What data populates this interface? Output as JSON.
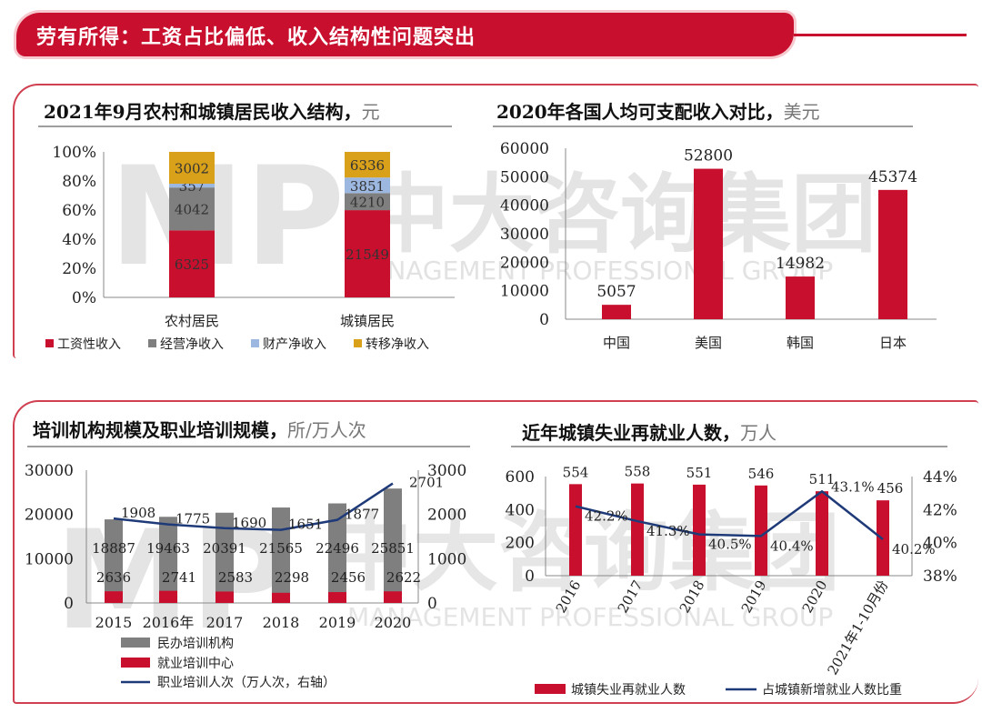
{
  "banner": {
    "title": "劳有所得：工资占比偏低、收入结构性问题突出",
    "color": "#c8102e"
  },
  "watermark": {
    "logo": "MP",
    "cn": "中大咨询集团",
    "en": "MANAGEMENT PROFESSIONAL GROUP"
  },
  "panels": {
    "p1": {
      "title": "2021年9月农村和城镇居民收入结构，",
      "unit": "元"
    },
    "p2": {
      "title": "2020年各国人均可支配收入对比，",
      "unit": "美元"
    },
    "p3": {
      "title": "培训机构规模及职业培训规模，",
      "unit": "所/万人次"
    },
    "p4": {
      "title": "近年城镇失业再就业人数，",
      "unit": "万人"
    }
  },
  "chart_data": [
    {
      "id": "income-structure",
      "type": "bar",
      "stacked": "percent",
      "title": "2021年9月农村和城镇居民收入结构",
      "categories": [
        "农村居民",
        "城镇居民"
      ],
      "series": [
        {
          "name": "工资性收入",
          "color": "#c8102e",
          "values": [
            6325,
            21549
          ]
        },
        {
          "name": "经营净收入",
          "color": "#7f7f7f",
          "values": [
            4042,
            4210
          ]
        },
        {
          "name": "财产净收入",
          "color": "#9db8e0",
          "values": [
            357,
            3851
          ]
        },
        {
          "name": "转移净收入",
          "color": "#d9a019",
          "values": [
            3002,
            6336
          ]
        }
      ],
      "yticks": [
        "0%",
        "20%",
        "40%",
        "60%",
        "80%",
        "100%"
      ],
      "ylim": [
        0,
        100
      ],
      "legend": "bottom"
    },
    {
      "id": "country-income",
      "type": "bar",
      "title": "2020年各国人均可支配收入对比",
      "categories": [
        "中国",
        "美国",
        "韩国",
        "日本"
      ],
      "values": [
        5057,
        52800,
        14982,
        45374
      ],
      "color": "#c8102e",
      "yticks": [
        0,
        10000,
        20000,
        30000,
        40000,
        50000,
        60000
      ],
      "ylim": [
        0,
        60000
      ]
    },
    {
      "id": "training",
      "type": "bar",
      "title": "培训机构规模及职业培训规模",
      "categories": [
        "2015",
        "2016年",
        "2017",
        "2018",
        "2019",
        "2020"
      ],
      "series": [
        {
          "name": "民办培训机构",
          "color": "#7f7f7f",
          "values": [
            18887,
            19463,
            20391,
            21565,
            22496,
            25851
          ]
        },
        {
          "name": "就业培训中心",
          "color": "#c8102e",
          "values": [
            2636,
            2741,
            2583,
            2298,
            2456,
            2622
          ]
        },
        {
          "name": "职业培训人次（万人次，右轴）",
          "color": "#1f3a78",
          "type": "line",
          "axis": "right",
          "values": [
            1908,
            1775,
            1690,
            1651,
            1877,
            2701
          ]
        }
      ],
      "yticks_left": [
        0,
        10000,
        20000,
        30000
      ],
      "ylim_left": [
        0,
        30000
      ],
      "yticks_right": [
        0,
        1000,
        2000,
        3000
      ],
      "ylim_right": [
        0,
        3000
      ],
      "legend": "bottom"
    },
    {
      "id": "reemployment",
      "type": "bar",
      "title": "近年城镇失业再就业人数",
      "categories": [
        "2016",
        "2017",
        "2018",
        "2019",
        "2020",
        "2021年1-10月份"
      ],
      "series": [
        {
          "name": "城镇失业再就业人数",
          "color": "#c8102e",
          "values": [
            554,
            558,
            551,
            546,
            511,
            456
          ]
        },
        {
          "name": "占城镇新增就业人数比重",
          "color": "#1f3a78",
          "type": "line",
          "axis": "right",
          "values": [
            42.2,
            41.3,
            40.5,
            40.4,
            43.1,
            40.2
          ],
          "labels": [
            "42.2%",
            "41.3%",
            "40.5%",
            "40.4%",
            "43.1%",
            "40.2%"
          ]
        }
      ],
      "yticks_left": [
        0,
        200,
        400,
        600
      ],
      "ylim_left": [
        0,
        600
      ],
      "yticks_right": [
        "38%",
        "40%",
        "42%",
        "44%"
      ],
      "ylim_right": [
        38,
        44
      ],
      "legend": "bottom"
    }
  ]
}
